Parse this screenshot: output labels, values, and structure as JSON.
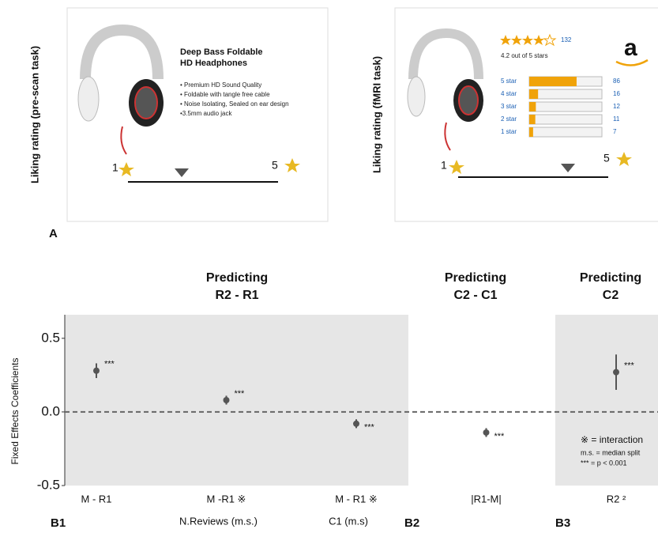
{
  "panel_a": {
    "label": "A",
    "left": {
      "y_label": "Liking rating (pre-scan task)",
      "product_title": [
        "Deep Bass Foldable",
        "HD Headphones"
      ],
      "bullets": [
        "• Premium HD Sound Quality",
        "• Foldable with tangle free cable",
        "• Noise Isolating, Sealed on ear design",
        "•3.5mm audio jack"
      ],
      "scale_min": "1",
      "scale_max": "5"
    },
    "right": {
      "y_label": "Liking rating (fMRI task)",
      "review_count": 132,
      "average": "4.2 out of 5 stars",
      "logo": "a",
      "rows": [
        {
          "label": "5 star",
          "count": 86
        },
        {
          "label": "4 star",
          "count": 16
        },
        {
          "label": "3 star",
          "count": 12
        },
        {
          "label": "2 star",
          "count": 11
        },
        {
          "label": "1 star",
          "count": 7
        }
      ],
      "scale_min": "1",
      "scale_max": "5"
    }
  },
  "chart_data": {
    "type": "errorbar",
    "y_label": "Fixed Effects Coefficients",
    "group_titles": [
      [
        "Predicting",
        "R2 - R1"
      ],
      [
        "Predicting",
        "C2 - C1"
      ],
      [
        "Predicting",
        "C2"
      ]
    ],
    "panel_labels": [
      "B1",
      "B2",
      "B3"
    ],
    "categories": [
      "M - R1",
      "M -R1 ※",
      "M - R1 ※",
      "|R1-M|",
      "R2 ²"
    ],
    "sublabels": [
      null,
      "N.Reviews (m.s.)",
      "C1 (m.s)",
      null,
      null
    ],
    "values": [
      0.28,
      0.08,
      -0.08,
      -0.14,
      0.27
    ],
    "ci_low": [
      0.23,
      0.05,
      -0.11,
      -0.17,
      0.15
    ],
    "ci_high": [
      0.33,
      0.11,
      -0.05,
      -0.11,
      0.39
    ],
    "significance": [
      "***",
      "***",
      "***",
      "***",
      "***"
    ],
    "color": "#555555",
    "ylim": [
      -0.5,
      0.66
    ],
    "yticks": [
      -0.5,
      {
        "value": 0,
        "label": "0.0"
      },
      0.5
    ],
    "hline": 0,
    "notes": [
      "※ = interaction",
      "m.s. = median split",
      "*** = p < 0.001"
    ]
  }
}
